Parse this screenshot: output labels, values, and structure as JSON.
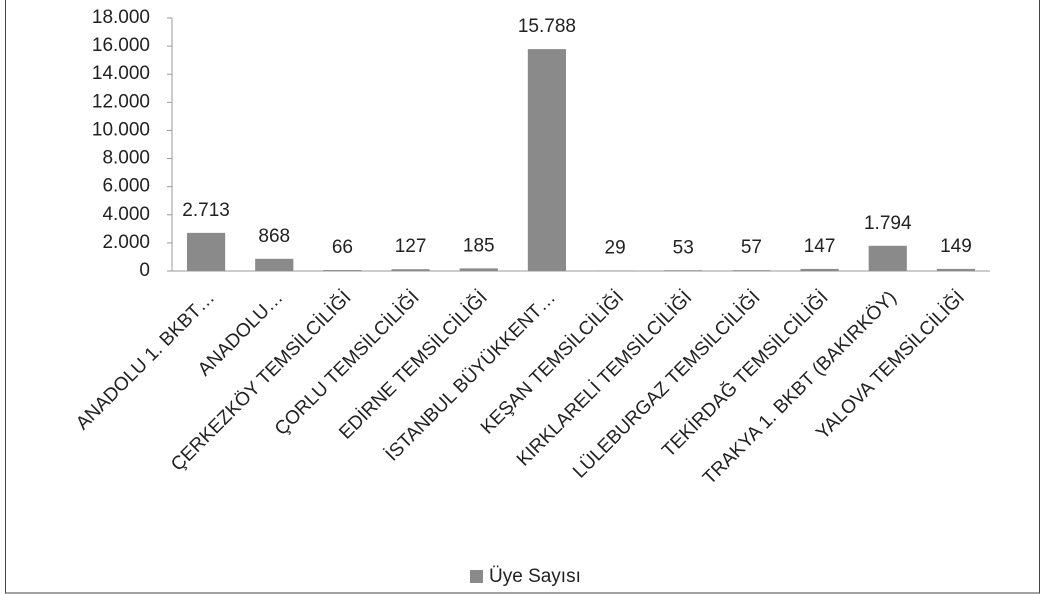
{
  "chart_data": {
    "type": "bar",
    "categories": [
      "ANADOLU 1. BKBT…",
      "ANADOLU…",
      "ÇERKEZKÖY TEMSİLCİLİĞİ",
      "ÇORLU TEMSİLCİLİĞİ",
      "EDİRNE TEMSİLCİLİĞİ",
      "İSTANBUL BÜYÜKKENT…",
      "KEŞAN TEMSİLCİLİĞİ",
      "KIRKLARELİ TEMSİLCİLİĞİ",
      "LÜLEBURGAZ TEMSİLCİLİĞİ",
      "TEKİRDAĞ TEMSİLCİLİĞİ",
      "TRAKYA 1. BKBT (BAKIRKÖY)",
      "YALOVA TEMSİLCİLİĞİ"
    ],
    "series": [
      {
        "name": "Üye Sayısı",
        "color": "#8a8a8a",
        "values": [
          2713,
          868,
          66,
          127,
          185,
          15788,
          29,
          53,
          57,
          147,
          1794,
          149
        ],
        "value_labels": [
          "2.713",
          "868",
          "66",
          "127",
          "185",
          "15.788",
          "29",
          "53",
          "57",
          "147",
          "1.794",
          "149"
        ]
      }
    ],
    "ylim": [
      0,
      18000
    ],
    "yticks": [
      0,
      {
        "value": 2000,
        "label": "2.000"
      },
      {
        "value": 4000,
        "label": "4.000"
      },
      {
        "value": 6000,
        "label": "6.000"
      },
      {
        "value": 8000,
        "label": "8.000"
      },
      {
        "value": 10000,
        "label": "10.000"
      },
      {
        "value": 12000,
        "label": "12.000"
      },
      {
        "value": 14000,
        "label": "14.000"
      },
      {
        "value": 16000,
        "label": "16.000"
      },
      {
        "value": 18000,
        "label": "18.000"
      }
    ],
    "grid": false,
    "legend": "bottom"
  }
}
